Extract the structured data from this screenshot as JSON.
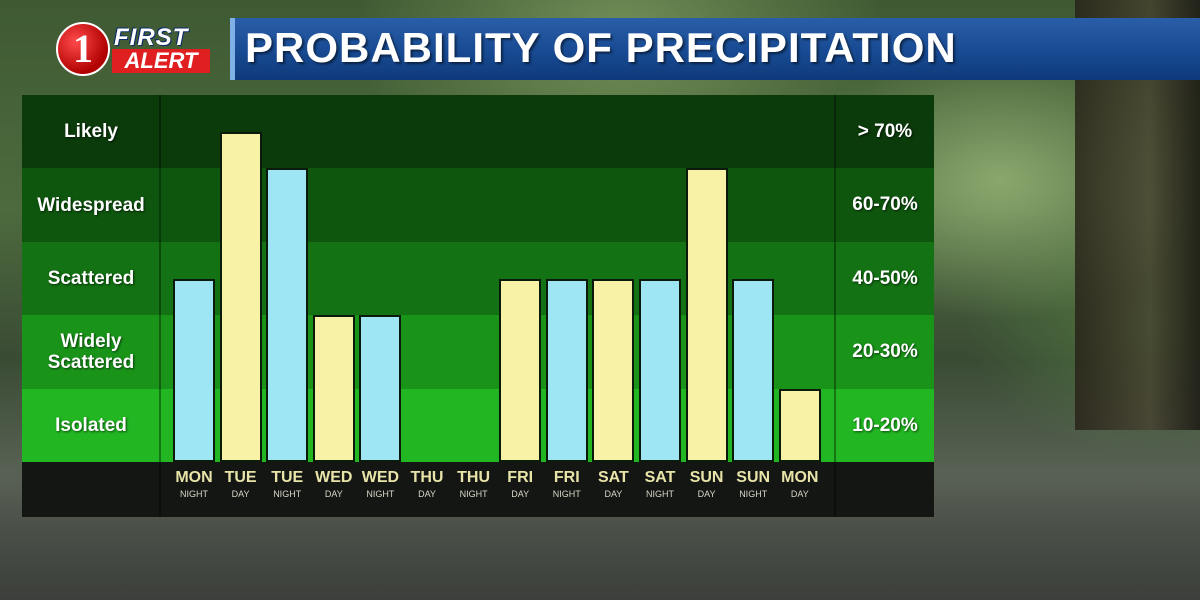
{
  "header": {
    "logo_number": "1",
    "logo_first": "FIRST",
    "logo_alert": "ALERT",
    "title": "PROBABILITY OF PRECIPITATION"
  },
  "colors": {
    "day_bar": "#f8f2a6",
    "night_bar": "#9ee6f4",
    "band_likely": "#0b3a0b",
    "band_widespread": "#0e560e",
    "band_scattered": "#137213",
    "band_widely": "#199419",
    "band_isolated": "#22b622",
    "title_bar": "#174a92"
  },
  "chart_data": {
    "type": "bar",
    "title": "PROBABILITY OF PRECIPITATION",
    "bands": [
      {
        "label": "Likely",
        "range": "> 70%"
      },
      {
        "label": "Widespread",
        "range": "60-70%"
      },
      {
        "label": "Scattered",
        "range": "40-50%"
      },
      {
        "label": "Widely Scattered",
        "range": "20-30%"
      },
      {
        "label": "Isolated",
        "range": "10-20%"
      }
    ],
    "categories": [
      {
        "day": "MON",
        "period": "NIGHT"
      },
      {
        "day": "TUE",
        "period": "DAY"
      },
      {
        "day": "TUE",
        "period": "NIGHT"
      },
      {
        "day": "WED",
        "period": "DAY"
      },
      {
        "day": "WED",
        "period": "NIGHT"
      },
      {
        "day": "THU",
        "period": "DAY"
      },
      {
        "day": "THU",
        "period": "NIGHT"
      },
      {
        "day": "FRI",
        "period": "DAY"
      },
      {
        "day": "FRI",
        "period": "NIGHT"
      },
      {
        "day": "SAT",
        "period": "DAY"
      },
      {
        "day": "SAT",
        "period": "NIGHT"
      },
      {
        "day": "SUN",
        "period": "DAY"
      },
      {
        "day": "SUN",
        "period": "NIGHT"
      },
      {
        "day": "MON",
        "period": "DAY"
      }
    ],
    "values_band_level": [
      2.5,
      4.5,
      4.0,
      2.0,
      2.0,
      0,
      0,
      2.5,
      2.5,
      2.5,
      2.5,
      4.0,
      2.5,
      1.0
    ],
    "value_unit": "band level (1 band = one category row, 0 = none)",
    "ylim": [
      0,
      5
    ]
  }
}
